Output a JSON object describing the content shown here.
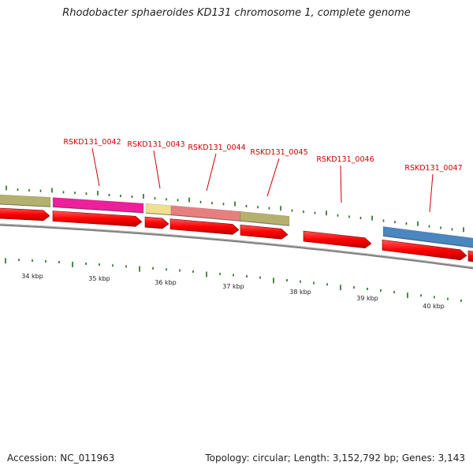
{
  "title": "Rhodobacter sphaeroides KD131 chromosome 1, complete genome",
  "footer": {
    "accession": "Accession: NC_011963",
    "summary": "Topology: circular; Length: 3,152,792 bp; Genes: 3,143"
  },
  "colors": {
    "backbone": "#808080",
    "gene_arrow": "#ff0000",
    "label": "#cc0000",
    "tick": "#1e6e1e",
    "olive": "#b5b06e",
    "magenta": "#ee1f9a",
    "pale_yellow": "#eee08e",
    "salmon": "#e87f7f",
    "steel_blue": "#4a86c0"
  },
  "scale_labels": [
    "34 kbp",
    "35 kbp",
    "36 kbp",
    "37 kbp",
    "38 kbp",
    "39 kbp",
    "40 kbp"
  ],
  "gene_labels": [
    "RSKD131_0042",
    "RSKD131_0043",
    "RSKD131_0044",
    "RSKD131_0045",
    "RSKD131_0046",
    "RSKD131_0047"
  ]
}
